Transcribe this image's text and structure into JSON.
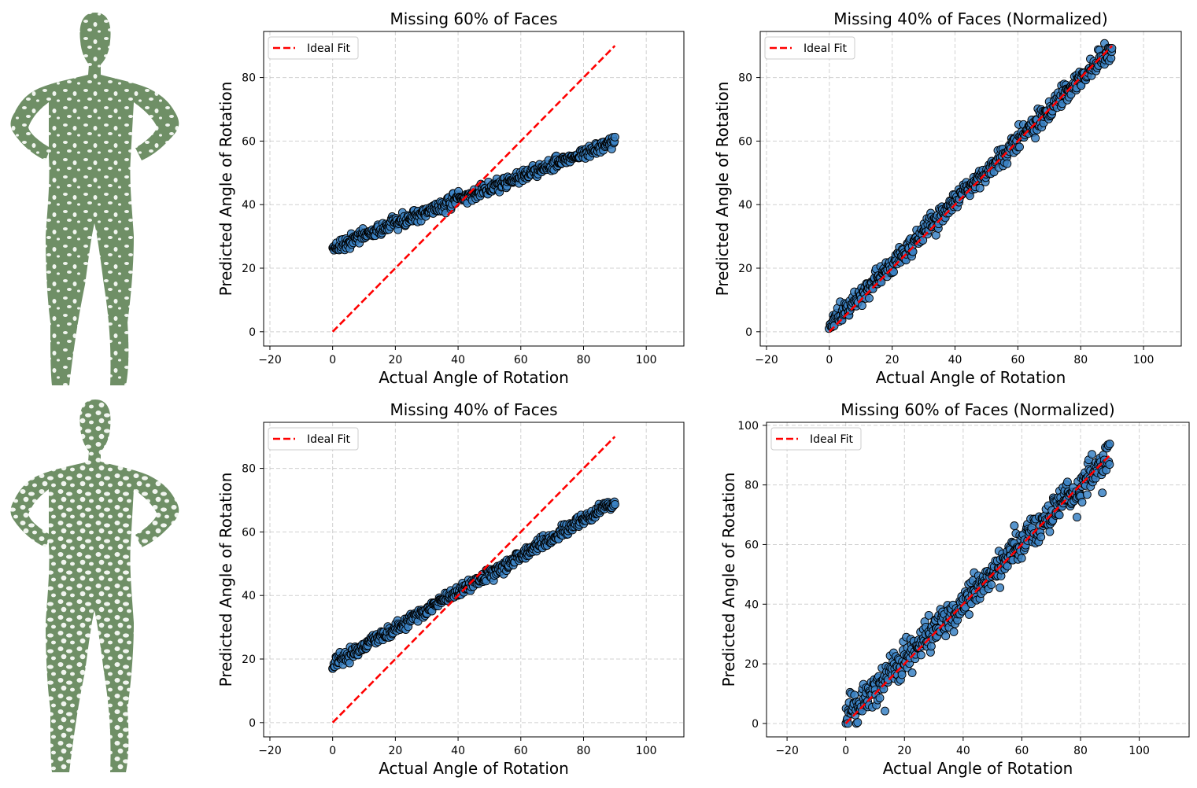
{
  "figure": {
    "mesh_images": [
      "human-mesh-missing-faces-60",
      "human-mesh-missing-faces-40"
    ],
    "mesh_color": "#6f8f66"
  },
  "chart_data": [
    {
      "type": "scatter",
      "title": "Missing 60% of Faces",
      "xlabel": "Actual Angle of Rotation",
      "ylabel": "Predicted Angle of Rotation",
      "xlim": [
        -22,
        112
      ],
      "ylim": [
        -4.5,
        94.5
      ],
      "xticks": [
        -20,
        0,
        20,
        40,
        60,
        80,
        100
      ],
      "yticks": [
        0,
        20,
        40,
        60,
        80
      ],
      "grid": true,
      "legend_loc": "upper-left",
      "legend": [
        "Ideal Fit"
      ],
      "ideal_fit": {
        "x": [
          0,
          90
        ],
        "y": [
          0,
          90
        ],
        "color": "#ff0000"
      },
      "point_color": "#3b82c4",
      "scatter_series": {
        "n_points": 500,
        "x_range": [
          0,
          90
        ],
        "fit_slope": 0.37,
        "fit_intercept": 26.6,
        "noise_sd": 1.0,
        "y_clip": [
          25.5,
          63.5
        ]
      }
    },
    {
      "type": "scatter",
      "title": "Missing 40% of Faces (Normalized)",
      "xlabel": "Actual Angle of Rotation",
      "ylabel": "Predicted Angle of Rotation",
      "xlim": [
        -22,
        112
      ],
      "ylim": [
        -4.5,
        94.5
      ],
      "xticks": [
        -20,
        0,
        20,
        40,
        60,
        80,
        100
      ],
      "yticks": [
        0,
        20,
        40,
        60,
        80
      ],
      "grid": true,
      "legend_loc": "upper-left",
      "legend": [
        "Ideal Fit"
      ],
      "ideal_fit": {
        "x": [
          0,
          90
        ],
        "y": [
          0,
          90
        ],
        "color": "#ff0000"
      },
      "point_color": "#3b82c4",
      "scatter_series": {
        "n_points": 500,
        "x_range": [
          0,
          90
        ],
        "fit_slope": 0.97,
        "fit_intercept": 2.0,
        "noise_sd": 1.6,
        "y_clip": [
          1.0,
          93.0
        ]
      }
    },
    {
      "type": "scatter",
      "title": "Missing 40% of Faces",
      "xlabel": "Actual Angle of Rotation",
      "ylabel": "Predicted Angle of Rotation",
      "xlim": [
        -22,
        112
      ],
      "ylim": [
        -4.5,
        94.5
      ],
      "xticks": [
        -20,
        0,
        20,
        40,
        60,
        80,
        100
      ],
      "yticks": [
        0,
        20,
        40,
        60,
        80
      ],
      "grid": true,
      "legend_loc": "upper-left",
      "legend": [
        "Ideal Fit"
      ],
      "ideal_fit": {
        "x": [
          0,
          90
        ],
        "y": [
          0,
          90
        ],
        "color": "#ff0000"
      },
      "point_color": "#3b82c4",
      "scatter_series": {
        "n_points": 500,
        "x_range": [
          0,
          90
        ],
        "fit_slope": 0.57,
        "fit_intercept": 18.3,
        "noise_sd": 1.0,
        "y_clip": [
          17.0,
          72.5
        ]
      }
    },
    {
      "type": "scatter",
      "title": "Missing 60% of Faces (Normalized)",
      "xlabel": "Actual Angle of Rotation",
      "ylabel": "Predicted Angle of Rotation",
      "xlim": [
        -27,
        117
      ],
      "ylim": [
        -4.5,
        101
      ],
      "xticks": [
        -20,
        0,
        20,
        40,
        60,
        80,
        100
      ],
      "yticks": [
        0,
        20,
        40,
        60,
        80,
        100
      ],
      "grid": true,
      "legend_loc": "upper-left",
      "legend": [
        "Ideal Fit"
      ],
      "ideal_fit": {
        "x": [
          0,
          90
        ],
        "y": [
          0,
          90
        ],
        "color": "#ff0000"
      },
      "point_color": "#3b82c4",
      "scatter_series": {
        "n_points": 500,
        "x_range": [
          0,
          90
        ],
        "fit_slope": 0.98,
        "fit_intercept": 1.5,
        "noise_sd": 3.0,
        "y_clip": [
          0.0,
          97.0
        ]
      }
    }
  ]
}
